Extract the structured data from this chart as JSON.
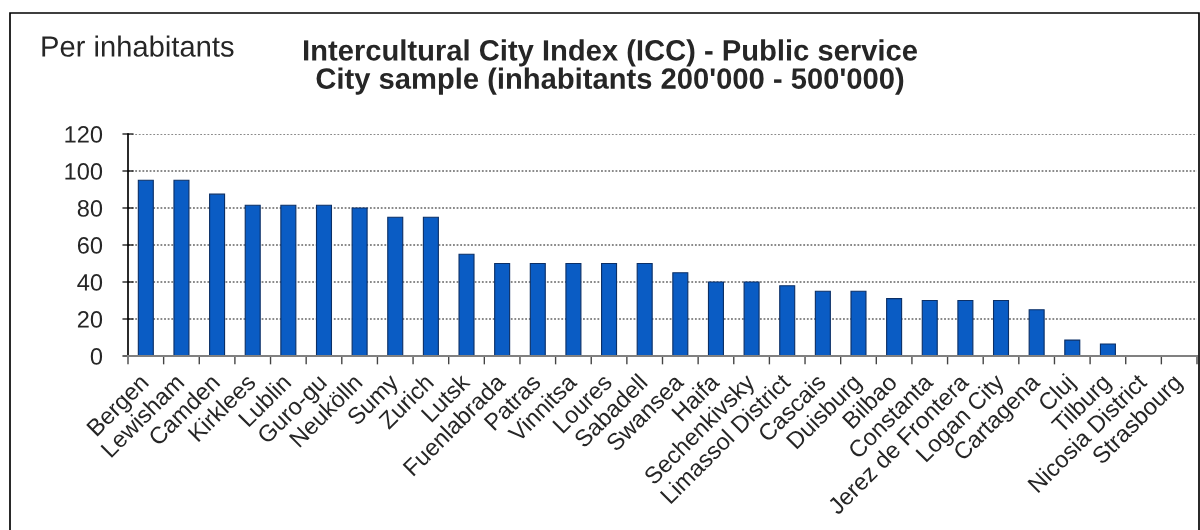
{
  "chart_data": {
    "type": "bar",
    "title": "Intercultural City Index (ICC) - Public service\nCity sample (inhabitants 200'000 - 500'000)",
    "ylabel": "Per inhabitants",
    "categories": [
      "Bergen",
      "Lewisham",
      "Camden",
      "Kirklees",
      "Lublin",
      "Guro-gu",
      "Neukölln",
      "Sumy",
      "Zurich",
      "Lutsk",
      "Fuenlabrada",
      "Patras",
      "Vinnitsa",
      "Loures",
      "Sabadell",
      "Swansea",
      "Haifa",
      "Sechenkivsky",
      "Limassol District",
      "Cascais",
      "Duisburg",
      "Bilbao",
      "Constanta",
      "Jerez de Frontera",
      "Logan City",
      "Cartagena",
      "Cluj",
      "Tilburg",
      "Nicosia District",
      "Strasbourg"
    ],
    "values": [
      95,
      95,
      87.5,
      81.5,
      81.5,
      81.5,
      80,
      75,
      75,
      55,
      50,
      50,
      50,
      50,
      50,
      45,
      40,
      40,
      38,
      35,
      35,
      31,
      30,
      30,
      30,
      25,
      8.6,
      6.5,
      null,
      null
    ],
    "color": "#0a5cc4",
    "ylim": [
      0,
      120
    ],
    "yticks": [
      0,
      20,
      40,
      60,
      80,
      100,
      120
    ],
    "grid": "y"
  }
}
